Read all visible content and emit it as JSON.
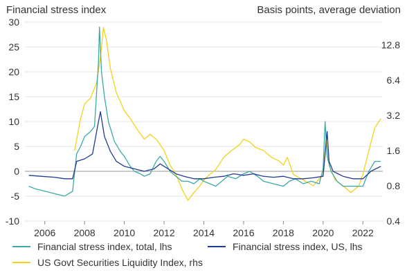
{
  "chart_data": {
    "type": "line",
    "left_title": "Financial stress index",
    "right_title": "Basis points, average deviation",
    "x_ticks": [
      "2006",
      "2008",
      "2010",
      "2012",
      "2014",
      "2016",
      "2018",
      "2020",
      "2022"
    ],
    "xlim": [
      2005.0,
      2023.0
    ],
    "y_left": {
      "lim": [
        -10,
        30
      ],
      "ticks": [
        "-10",
        "-5",
        "0",
        "5",
        "10",
        "15",
        "20",
        "25",
        "30"
      ]
    },
    "y_right": {
      "scale": "log2",
      "lim": [
        0.4,
        20
      ],
      "ticks": [
        "0.4",
        "0.8",
        "1.6",
        "3.2",
        "6.4",
        "12.8"
      ]
    },
    "grid": "horizontal",
    "legend_position": "bottom",
    "colors": {
      "total": "#3aaaa6",
      "us": "#1f3a8f",
      "liquidity": "#f2d21b",
      "grid": "#e6e6e6",
      "zero": "#9a9a9a"
    },
    "series": [
      {
        "name": "Financial stress index, total, lhs",
        "axis": "left",
        "x": [
          2005.2,
          2005.5,
          2006.0,
          2006.5,
          2007.0,
          2007.4,
          2007.6,
          2007.8,
          2008.0,
          2008.3,
          2008.5,
          2008.7,
          2008.75,
          2008.85,
          2009.0,
          2009.2,
          2009.5,
          2009.8,
          2010.0,
          2010.3,
          2010.5,
          2010.8,
          2011.0,
          2011.3,
          2011.6,
          2011.8,
          2012.0,
          2012.3,
          2012.6,
          2012.9,
          2013.2,
          2013.5,
          2013.8,
          2014.0,
          2014.3,
          2014.6,
          2014.9,
          2015.2,
          2015.6,
          2016.0,
          2016.3,
          2016.7,
          2017.0,
          2017.5,
          2018.0,
          2018.3,
          2018.6,
          2019.0,
          2019.4,
          2019.8,
          2020.0,
          2020.1,
          2020.2,
          2020.4,
          2020.7,
          2021.0,
          2021.5,
          2022.0,
          2022.3,
          2022.6,
          2022.9
        ],
        "values": [
          -3.0,
          -3.5,
          -4.0,
          -4.5,
          -5.0,
          -4.0,
          3.5,
          5.0,
          7.0,
          8.0,
          9.0,
          22.0,
          29.0,
          20.0,
          15.0,
          10.0,
          6.0,
          4.0,
          3.0,
          1.0,
          0.0,
          -0.5,
          -1.0,
          -0.5,
          2.0,
          3.0,
          2.0,
          0.0,
          -1.0,
          -2.0,
          -2.0,
          -2.5,
          -1.5,
          -2.0,
          -2.5,
          -3.0,
          -2.0,
          -1.0,
          -1.5,
          -0.5,
          0.0,
          -1.0,
          -2.0,
          -2.5,
          -3.0,
          -2.0,
          -1.5,
          -2.5,
          -2.0,
          -2.5,
          0.5,
          10.0,
          3.0,
          0.0,
          -2.0,
          -3.0,
          -3.0,
          -3.0,
          0.0,
          2.0,
          2.0
        ]
      },
      {
        "name": "Financial stress index, US, lhs",
        "axis": "left",
        "x": [
          2005.2,
          2005.8,
          2006.5,
          2007.0,
          2007.4,
          2007.6,
          2008.0,
          2008.4,
          2008.7,
          2008.8,
          2009.0,
          2009.3,
          2009.6,
          2010.0,
          2010.5,
          2011.0,
          2011.5,
          2011.8,
          2012.2,
          2012.6,
          2013.0,
          2013.5,
          2014.0,
          2014.5,
          2015.0,
          2015.5,
          2016.0,
          2016.5,
          2017.0,
          2017.5,
          2018.0,
          2018.5,
          2019.0,
          2019.5,
          2020.0,
          2020.2,
          2020.3,
          2020.5,
          2021.0,
          2021.5,
          2022.0,
          2022.4,
          2022.9
        ],
        "values": [
          -0.8,
          -1.0,
          -1.2,
          -1.5,
          -1.5,
          2.0,
          2.5,
          3.5,
          10.0,
          12.0,
          7.0,
          4.0,
          2.0,
          1.0,
          0.5,
          0.0,
          0.5,
          1.5,
          0.5,
          -0.5,
          -1.0,
          -1.5,
          -1.5,
          -1.2,
          -1.0,
          -0.5,
          -0.8,
          -0.5,
          -1.0,
          -1.2,
          -1.0,
          -1.5,
          -1.5,
          -1.3,
          -1.0,
          8.0,
          2.0,
          0.0,
          -1.0,
          -1.5,
          -1.5,
          0.0,
          1.0
        ]
      },
      {
        "name": "US Govt Securities Liquidity Index, rhs",
        "axis": "right",
        "x": [
          2007.5,
          2007.8,
          2008.0,
          2008.3,
          2008.6,
          2008.8,
          2008.95,
          2009.1,
          2009.3,
          2009.6,
          2010.0,
          2010.3,
          2010.6,
          2011.0,
          2011.3,
          2011.6,
          2011.8,
          2012.0,
          2012.3,
          2012.6,
          2012.9,
          2013.2,
          2013.5,
          2013.8,
          2014.0,
          2014.3,
          2014.6,
          2015.0,
          2015.4,
          2015.8,
          2016.0,
          2016.3,
          2016.6,
          2017.0,
          2017.4,
          2017.8,
          2018.0,
          2018.2,
          2018.5,
          2019.0,
          2019.5,
          2020.0,
          2020.15,
          2020.3,
          2020.6,
          2021.0,
          2021.4,
          2021.8,
          2022.0,
          2022.3,
          2022.6,
          2022.9
        ],
        "values": [
          1.6,
          3.0,
          4.0,
          4.5,
          6.0,
          10.0,
          18.0,
          14.0,
          8.0,
          5.0,
          3.5,
          3.0,
          2.5,
          2.0,
          2.2,
          2.0,
          1.8,
          1.6,
          1.2,
          1.0,
          0.75,
          0.6,
          0.7,
          0.8,
          0.9,
          1.0,
          1.1,
          1.4,
          1.6,
          1.8,
          2.0,
          1.9,
          1.7,
          1.6,
          1.4,
          1.3,
          1.2,
          1.4,
          1.0,
          0.9,
          0.8,
          1.0,
          2.0,
          1.2,
          0.9,
          0.8,
          0.7,
          0.8,
          1.0,
          1.6,
          2.5,
          3.0
        ]
      }
    ]
  }
}
